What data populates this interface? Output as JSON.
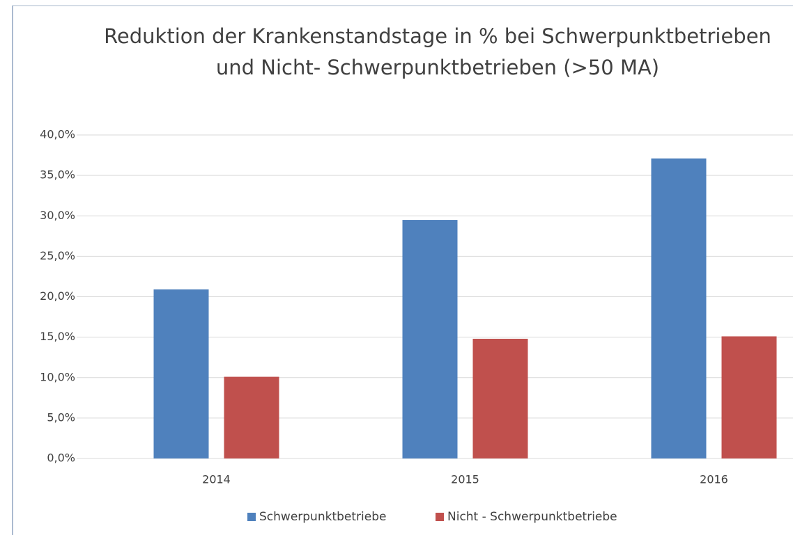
{
  "chart_data": {
    "type": "bar",
    "title": [
      "Reduktion der Krankenstandstage in % bei Schwerpunktbetrieben",
      "und Nicht- Schwerpunktbetrieben (>50 MA)"
    ],
    "categories": [
      "2014",
      "2015",
      "2016"
    ],
    "series": [
      {
        "name": "Schwerpunktbetriebe",
        "color": "#4f81bd",
        "values": [
          20.9,
          29.5,
          37.1
        ]
      },
      {
        "name": "Nicht - Schwerpunktbetriebe",
        "color": "#c0504d",
        "values": [
          10.1,
          14.8,
          15.1
        ]
      }
    ],
    "ylim": [
      0,
      40
    ],
    "yticks": [
      {
        "value": 0,
        "label": "0,0%"
      },
      {
        "value": 5,
        "label": "5,0%"
      },
      {
        "value": 10,
        "label": "10,0%"
      },
      {
        "value": 15,
        "label": "15,0%"
      },
      {
        "value": 20,
        "label": "20,0%"
      },
      {
        "value": 25,
        "label": "25,0%"
      },
      {
        "value": 30,
        "label": "30,0%"
      },
      {
        "value": 35,
        "label": "35,0%"
      },
      {
        "value": 40,
        "label": "40,0%"
      }
    ],
    "grid": true,
    "legend": "bottom"
  }
}
